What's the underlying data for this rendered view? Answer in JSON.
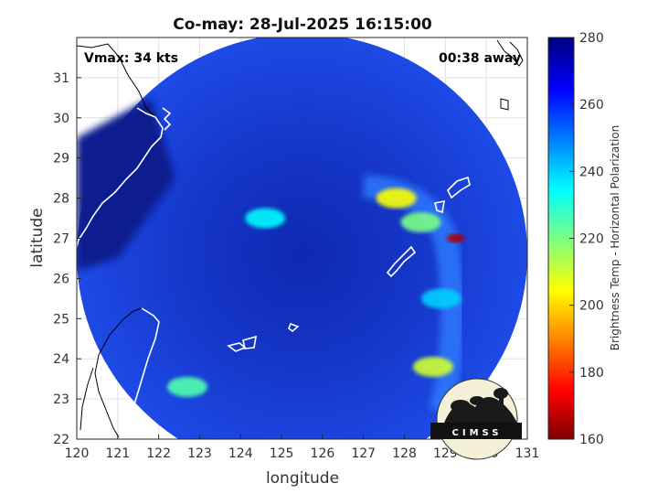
{
  "chart_data": {
    "type": "heatmap",
    "title": "Co-may: 28-Jul-2025 16:15:00",
    "xlabel": "longitude",
    "ylabel": "latitude",
    "xlim": [
      120,
      131
    ],
    "ylim": [
      22,
      32
    ],
    "xticks": [
      120,
      121,
      122,
      123,
      124,
      125,
      126,
      127,
      128,
      129,
      130,
      131
    ],
    "yticks": [
      22,
      23,
      24,
      25,
      26,
      27,
      28,
      29,
      30,
      31
    ],
    "grid": true,
    "annotations": {
      "vmax": "Vmax: 34 kts",
      "time_away": "00:38 away"
    },
    "colorbar": {
      "label": "Brightness Temp - Horizontal Polarization",
      "range": [
        160,
        280
      ],
      "ticks": [
        160,
        180,
        200,
        220,
        240,
        260,
        280
      ]
    },
    "swath": {
      "center": [
        125.5,
        26.6
      ],
      "radius_deg": 5.5
    },
    "features": [
      {
        "lon": 127.8,
        "lat": 28.0,
        "tb": 205
      },
      {
        "lon": 128.4,
        "lat": 27.4,
        "tb": 220
      },
      {
        "lon": 129.25,
        "lat": 27.0,
        "tb": 165
      },
      {
        "lon": 128.7,
        "lat": 23.8,
        "tb": 210
      },
      {
        "lon": 122.7,
        "lat": 23.3,
        "tb": 225
      },
      {
        "lon": 124.6,
        "lat": 27.5,
        "tb": 235
      },
      {
        "lon": 128.9,
        "lat": 25.5,
        "tb": 240
      }
    ]
  },
  "logo": {
    "text": "CIMSS"
  }
}
